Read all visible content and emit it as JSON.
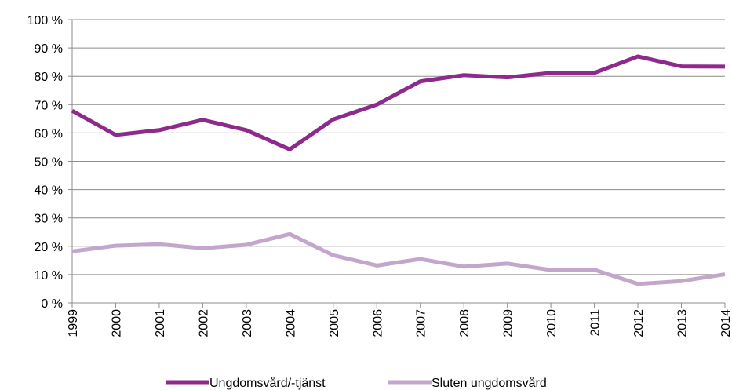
{
  "chart_data": {
    "type": "line",
    "categories": [
      "1999",
      "2000",
      "2001",
      "2002",
      "2003",
      "2004",
      "2005",
      "2006",
      "2007",
      "2008",
      "2009",
      "2010",
      "2011",
      "2012",
      "2013",
      "2014"
    ],
    "series": [
      {
        "name": "Ungdomsvård/-tjänst",
        "color": "#8e2a8c",
        "values": [
          67.8,
          59.3,
          61,
          64.6,
          61,
          54.2,
          64.8,
          70,
          78.2,
          80.4,
          79.6,
          81.2,
          81.2,
          87,
          83.5,
          83.4
        ]
      },
      {
        "name": "Sluten ungdomsvård",
        "color": "#c3a6cc",
        "values": [
          18.2,
          20.2,
          20.7,
          19.3,
          20.5,
          24.3,
          16.8,
          13.2,
          15.5,
          12.8,
          13.9,
          11.6,
          11.7,
          6.7,
          7.7,
          10.1
        ]
      }
    ],
    "ylim": [
      0,
      100
    ],
    "yticks": [
      {
        "value": 0,
        "label": "0 %"
      },
      {
        "value": 10,
        "label": "10 %"
      },
      {
        "value": 20,
        "label": "20 %"
      },
      {
        "value": 30,
        "label": "30 %"
      },
      {
        "value": 40,
        "label": "40 %"
      },
      {
        "value": 50,
        "label": "50 %"
      },
      {
        "value": 60,
        "label": "60 %"
      },
      {
        "value": 70,
        "label": "70 %"
      },
      {
        "value": 80,
        "label": "80 %"
      },
      {
        "value": 90,
        "label": "90 %"
      },
      {
        "value": 100,
        "label": "100 %"
      }
    ],
    "grid": true,
    "legend": "bottom"
  }
}
